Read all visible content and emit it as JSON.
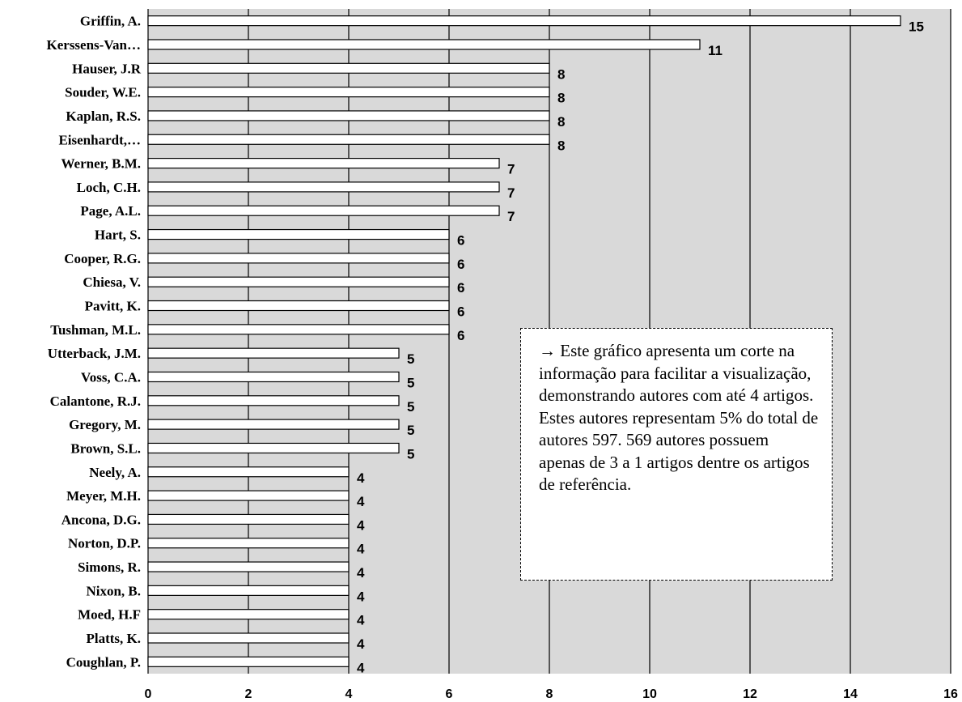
{
  "chart_data": {
    "type": "bar",
    "orientation": "horizontal",
    "categories": [
      "Griffin, A.",
      "Kerssens-Van…",
      "Hauser, J.R",
      "Souder, W.E.",
      "Kaplan, R.S.",
      "Eisenhardt,…",
      "Werner, B.M.",
      "Loch, C.H.",
      "Page, A.L.",
      "Hart, S.",
      "Cooper, R.G.",
      "Chiesa, V.",
      "Pavitt, K.",
      "Tushman, M.L.",
      "Utterback, J.M.",
      "Voss, C.A.",
      "Calantone, R.J.",
      "Gregory, M.",
      "Brown, S.L.",
      "Neely, A.",
      "Meyer, M.H.",
      "Ancona, D.G.",
      "Norton, D.P.",
      "Simons, R.",
      "Nixon, B.",
      "Moed, H.F",
      "Platts, K.",
      "Coughlan, P."
    ],
    "values": [
      15,
      11,
      8,
      8,
      8,
      8,
      7,
      7,
      7,
      6,
      6,
      6,
      6,
      6,
      5,
      5,
      5,
      5,
      5,
      4,
      4,
      4,
      4,
      4,
      4,
      4,
      4,
      4
    ],
    "xlim": [
      0,
      16
    ],
    "xticks": [
      0,
      2,
      4,
      6,
      8,
      10,
      12,
      14,
      16
    ],
    "grid": true,
    "data_labels": true,
    "title": "",
    "xlabel": "",
    "ylabel": "",
    "colors": {
      "plot_background": "#d9d9d9",
      "bar_fill": "#ffffff",
      "bar_stroke": "#000000",
      "gridline": "#000000"
    },
    "annotation": {
      "arrow": "→",
      "text": " Este gráfico apresenta um corte na informação para facilitar a visualização, demonstrando autores com até 4 artigos. Estes autores representam 5% do total de autores 597. 569 autores possuem apenas de 3 a 1 artigos dentre os artigos de referência."
    }
  }
}
